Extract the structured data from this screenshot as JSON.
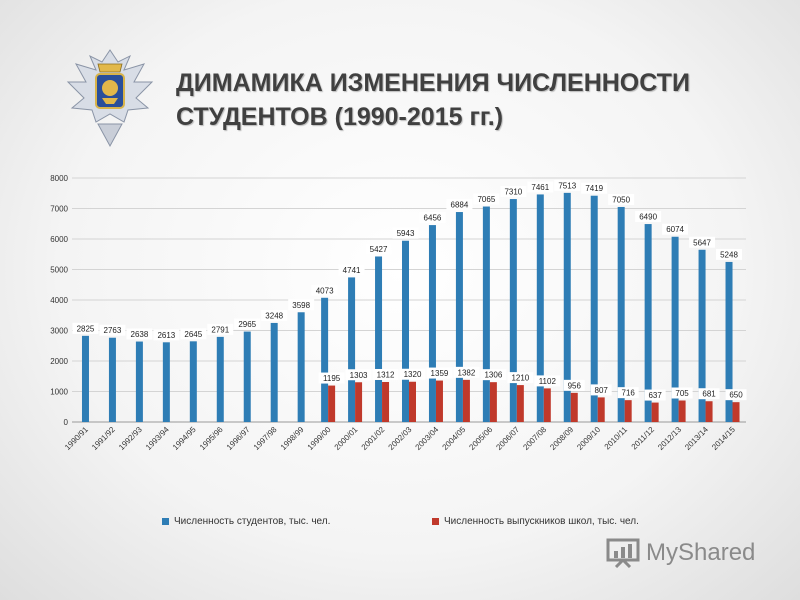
{
  "header": {
    "title_line1": "ДИМАМИКА ИЗМЕНЕНИЯ ЧИСЛЕННОСТИ",
    "title_line2": "СТУДЕНТОВ (1990-2015 гг.)"
  },
  "watermark": {
    "text": "MyShared"
  },
  "colors": {
    "students": "#2E7DB5",
    "graduates": "#C0392B"
  },
  "chart_data": {
    "type": "bar",
    "title": "ДИМАМИКА ИЗМЕНЕНИЯ ЧИСЛЕННОСТИ СТУДЕНТОВ (1990-2015 гг.)",
    "xlabel": "",
    "ylabel": "",
    "ylim": [
      0,
      8000
    ],
    "yticks": [
      0,
      1000,
      2000,
      3000,
      4000,
      5000,
      6000,
      7000,
      8000
    ],
    "grid": true,
    "legend_position": "bottom",
    "categories": [
      "1990/91",
      "1991/92",
      "1992/93",
      "1993/94",
      "1994/95",
      "1995/96",
      "1996/97",
      "1997/98",
      "1998/99",
      "1999/00",
      "2000/01",
      "2001/02",
      "2002/03",
      "2003/04",
      "2004/05",
      "2005/06",
      "2006/07",
      "2007/08",
      "2008/09",
      "2009/10",
      "2010/11",
      "2011/12",
      "2012/13",
      "2013/14",
      "2014/15"
    ],
    "series": [
      {
        "name": "Численность студентов, тыс. чел.",
        "values": [
          2825,
          2763,
          2638,
          2613,
          2645,
          2791,
          2965,
          3248,
          3598,
          4073,
          4741,
          5427,
          5943,
          6456,
          6884,
          7065,
          7310,
          7461,
          7513,
          7419,
          7050,
          6490,
          6074,
          5647,
          5248
        ]
      },
      {
        "name": "Численность выпускников школ, тыс. чел.",
        "values": [
          null,
          null,
          null,
          null,
          null,
          null,
          null,
          null,
          null,
          1195,
          1303,
          1312,
          1320,
          1359,
          1382,
          1306,
          1210,
          1102,
          956,
          807,
          716,
          637,
          705,
          681,
          650
        ]
      }
    ]
  }
}
